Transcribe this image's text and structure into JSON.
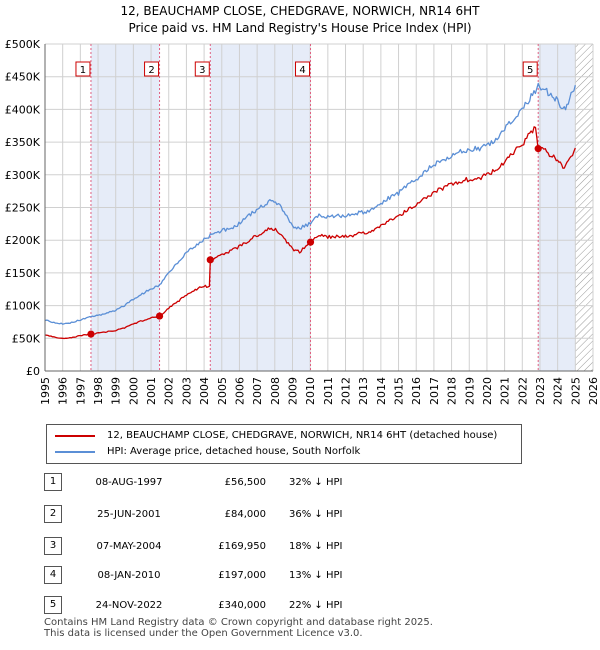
{
  "title_line1": "12, BEAUCHAMP CLOSE, CHEDGRAVE, NORWICH, NR14 6HT",
  "title_line2": "Price paid vs. HM Land Registry's House Price Index (HPI)",
  "colors": {
    "property": "#cc0000",
    "hpi": "#5b8fd6",
    "shade": "#e6ecf8",
    "vline": "#e06080",
    "grid": "#d0d0d0",
    "hatch": "#999999"
  },
  "legend": {
    "property": "12, BEAUCHAMP CLOSE, CHEDGRAVE, NORWICH, NR14 6HT (detached house)",
    "hpi": "HPI: Average price, detached house, South Norfolk"
  },
  "transactions": [
    {
      "num": "1",
      "date": "08-AUG-1997",
      "price": "£56,500",
      "hpi": "32% ↓ HPI"
    },
    {
      "num": "2",
      "date": "25-JUN-2001",
      "price": "£84,000",
      "hpi": "36% ↓ HPI"
    },
    {
      "num": "3",
      "date": "07-MAY-2004",
      "price": "£169,950",
      "hpi": "18% ↓ HPI"
    },
    {
      "num": "4",
      "date": "08-JAN-2010",
      "price": "£197,000",
      "hpi": "13% ↓ HPI"
    },
    {
      "num": "5",
      "date": "24-NOV-2022",
      "price": "£340,000",
      "hpi": "22% ↓ HPI"
    }
  ],
  "footer_line1": "Contains HM Land Registry data © Crown copyright and database right 2025.",
  "footer_line2": "This data is licensed under the Open Government Licence v3.0.",
  "chart_data": {
    "type": "line",
    "title": "12, BEAUCHAMP CLOSE, CHEDGRAVE, NORWICH, NR14 6HT — Price paid vs. HM Land Registry's House Price Index (HPI)",
    "xlabel": "",
    "ylabel": "",
    "xlim": [
      1995,
      2026
    ],
    "ylim": [
      0,
      500000
    ],
    "y_ticks": [
      0,
      50000,
      100000,
      150000,
      200000,
      250000,
      300000,
      350000,
      400000,
      450000,
      500000
    ],
    "y_tick_labels": [
      "£0",
      "£50K",
      "£100K",
      "£150K",
      "£200K",
      "£250K",
      "£300K",
      "£350K",
      "£400K",
      "£450K",
      "£500K"
    ],
    "x_ticks": [
      1995,
      1996,
      1997,
      1998,
      1999,
      2000,
      2001,
      2002,
      2003,
      2004,
      2005,
      2006,
      2007,
      2008,
      2009,
      2010,
      2011,
      2012,
      2013,
      2014,
      2015,
      2016,
      2017,
      2018,
      2019,
      2020,
      2021,
      2022,
      2023,
      2024,
      2025,
      2026
    ],
    "x_tick_labels": [
      "1995",
      "1996",
      "1997",
      "1998",
      "1999",
      "2000",
      "2001",
      "2002",
      "2003",
      "2004",
      "2005",
      "2006",
      "2007",
      "2008",
      "2009",
      "2010",
      "2011",
      "2012",
      "2013",
      "2014",
      "2015",
      "2016",
      "2017",
      "2018",
      "2019",
      "2020",
      "2021",
      "2022",
      "2023",
      "2024",
      "2025",
      "2026"
    ],
    "grid": true,
    "shaded_spans": [
      [
        1997.6,
        2001.48
      ],
      [
        2004.35,
        2010.02
      ],
      [
        2022.9,
        2025.0
      ]
    ],
    "hatched_span": [
      2025.0,
      2026.0
    ],
    "sale_markers": [
      {
        "label": "1",
        "x": 1997.6,
        "y": 56500
      },
      {
        "label": "2",
        "x": 2001.48,
        "y": 84000
      },
      {
        "label": "3",
        "x": 2004.35,
        "y": 169950
      },
      {
        "label": "4",
        "x": 2010.02,
        "y": 197000
      },
      {
        "label": "5",
        "x": 2022.9,
        "y": 340000
      }
    ],
    "series": [
      {
        "name": "HPI: Average price, detached house, South Norfolk",
        "color": "#5b8fd6",
        "points": [
          [
            1995.0,
            78000
          ],
          [
            1995.5,
            74000
          ],
          [
            1996.0,
            72000
          ],
          [
            1996.5,
            74000
          ],
          [
            1997.0,
            78000
          ],
          [
            1997.6,
            83000
          ],
          [
            1998.0,
            85000
          ],
          [
            1998.5,
            89000
          ],
          [
            1999.0,
            93000
          ],
          [
            1999.5,
            100000
          ],
          [
            2000.0,
            110000
          ],
          [
            2000.5,
            118000
          ],
          [
            2001.0,
            126000
          ],
          [
            2001.48,
            131000
          ],
          [
            2002.0,
            150000
          ],
          [
            2002.5,
            165000
          ],
          [
            2003.0,
            180000
          ],
          [
            2003.5,
            192000
          ],
          [
            2004.0,
            201000
          ],
          [
            2004.35,
            207000
          ],
          [
            2004.8,
            213000
          ],
          [
            2005.3,
            217000
          ],
          [
            2005.8,
            222000
          ],
          [
            2006.3,
            232000
          ],
          [
            2006.8,
            243000
          ],
          [
            2007.3,
            252000
          ],
          [
            2007.8,
            260000
          ],
          [
            2008.2,
            255000
          ],
          [
            2008.6,
            240000
          ],
          [
            2009.0,
            222000
          ],
          [
            2009.4,
            218000
          ],
          [
            2010.02,
            226000
          ],
          [
            2010.5,
            238000
          ],
          [
            2011.0,
            236000
          ],
          [
            2011.5,
            237000
          ],
          [
            2012.0,
            237000
          ],
          [
            2012.5,
            240000
          ],
          [
            2013.0,
            243000
          ],
          [
            2013.5,
            247000
          ],
          [
            2014.0,
            257000
          ],
          [
            2014.5,
            265000
          ],
          [
            2015.0,
            272000
          ],
          [
            2015.5,
            283000
          ],
          [
            2016.0,
            294000
          ],
          [
            2016.5,
            305000
          ],
          [
            2017.0,
            315000
          ],
          [
            2017.5,
            322000
          ],
          [
            2018.0,
            330000
          ],
          [
            2018.5,
            335000
          ],
          [
            2019.0,
            338000
          ],
          [
            2019.5,
            340000
          ],
          [
            2020.0,
            345000
          ],
          [
            2020.5,
            355000
          ],
          [
            2021.0,
            370000
          ],
          [
            2021.5,
            385000
          ],
          [
            2022.0,
            400000
          ],
          [
            2022.5,
            420000
          ],
          [
            2022.9,
            435000
          ],
          [
            2023.3,
            430000
          ],
          [
            2023.7,
            420000
          ],
          [
            2024.0,
            415000
          ],
          [
            2024.3,
            398000
          ],
          [
            2024.6,
            410000
          ],
          [
            2025.0,
            437000
          ]
        ]
      },
      {
        "name": "12, BEAUCHAMP CLOSE, CHEDGRAVE, NORWICH, NR14 6HT (detached house)",
        "color": "#cc0000",
        "points": [
          [
            1995.0,
            55000
          ],
          [
            1995.5,
            52000
          ],
          [
            1996.0,
            50000
          ],
          [
            1996.5,
            51000
          ],
          [
            1997.0,
            54000
          ],
          [
            1997.6,
            56500
          ],
          [
            1998.0,
            58000
          ],
          [
            1998.5,
            60000
          ],
          [
            1999.0,
            62000
          ],
          [
            1999.5,
            66000
          ],
          [
            2000.0,
            72000
          ],
          [
            2000.5,
            77000
          ],
          [
            2001.0,
            81000
          ],
          [
            2001.48,
            84000
          ],
          [
            2002.0,
            96000
          ],
          [
            2002.5,
            106000
          ],
          [
            2003.0,
            116000
          ],
          [
            2003.5,
            124000
          ],
          [
            2004.0,
            130000
          ],
          [
            2004.3,
            128000
          ],
          [
            2004.35,
            169950
          ],
          [
            2004.8,
            175000
          ],
          [
            2005.3,
            181000
          ],
          [
            2005.8,
            187000
          ],
          [
            2006.3,
            195000
          ],
          [
            2006.8,
            204000
          ],
          [
            2007.3,
            212000
          ],
          [
            2007.8,
            219000
          ],
          [
            2008.2,
            213000
          ],
          [
            2008.6,
            200000
          ],
          [
            2009.0,
            187000
          ],
          [
            2009.4,
            182000
          ],
          [
            2010.02,
            197000
          ],
          [
            2010.5,
            207000
          ],
          [
            2011.0,
            205000
          ],
          [
            2011.5,
            206000
          ],
          [
            2012.0,
            206000
          ],
          [
            2012.5,
            208000
          ],
          [
            2013.0,
            211000
          ],
          [
            2013.5,
            214000
          ],
          [
            2014.0,
            223000
          ],
          [
            2014.5,
            230000
          ],
          [
            2015.0,
            236000
          ],
          [
            2015.5,
            246000
          ],
          [
            2016.0,
            255000
          ],
          [
            2016.5,
            265000
          ],
          [
            2017.0,
            273000
          ],
          [
            2017.5,
            279000
          ],
          [
            2018.0,
            286000
          ],
          [
            2018.5,
            291000
          ],
          [
            2019.0,
            293000
          ],
          [
            2019.5,
            295000
          ],
          [
            2020.0,
            299000
          ],
          [
            2020.5,
            308000
          ],
          [
            2021.0,
            321000
          ],
          [
            2021.5,
            334000
          ],
          [
            2022.0,
            347000
          ],
          [
            2022.5,
            365000
          ],
          [
            2022.75,
            376000
          ],
          [
            2022.9,
            340000
          ],
          [
            2023.3,
            336000
          ],
          [
            2023.7,
            328000
          ],
          [
            2024.0,
            323000
          ],
          [
            2024.3,
            309000
          ],
          [
            2024.6,
            320000
          ],
          [
            2025.0,
            341000
          ]
        ]
      }
    ]
  }
}
